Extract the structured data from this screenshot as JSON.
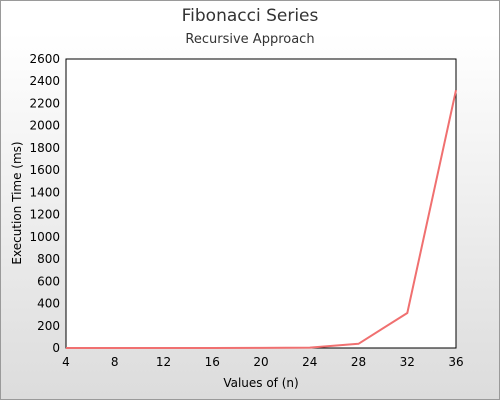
{
  "chart_data": {
    "type": "line",
    "title": "Fibonacci Series",
    "subtitle": "Recursive Approach",
    "xlabel": "Values of (n)",
    "ylabel": "Execution Time (ms)",
    "x": [
      4,
      8,
      12,
      16,
      20,
      24,
      28,
      32,
      36
    ],
    "series": [
      {
        "values": [
          0,
          0,
          0,
          0,
          1,
          4,
          38,
          315,
          2320
        ],
        "color": "#f07070"
      }
    ],
    "xlim": [
      4,
      36
    ],
    "ylim": [
      0,
      2600
    ],
    "xticks": [
      4,
      8,
      12,
      16,
      20,
      24,
      28,
      32,
      36
    ],
    "yticks": [
      0,
      200,
      400,
      600,
      800,
      1000,
      1200,
      1400,
      1600,
      1800,
      2000,
      2200,
      2400,
      2600
    ],
    "grid": false,
    "legend": "none"
  }
}
